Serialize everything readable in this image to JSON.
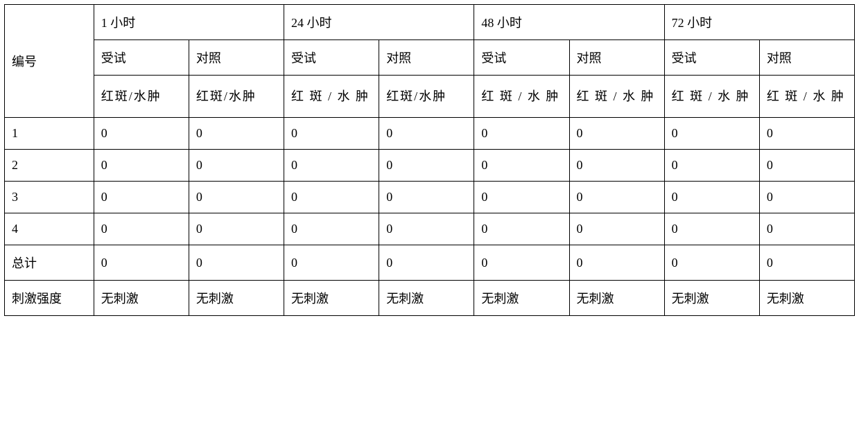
{
  "table": {
    "index_header": "编号",
    "time_groups": [
      {
        "label": "1 小时"
      },
      {
        "label": "24 小时"
      },
      {
        "label": "48 小时"
      },
      {
        "label": "72 小时"
      }
    ],
    "subgroup_labels": [
      "受试",
      "对照"
    ],
    "metric_label": "红斑/水肿",
    "metric_label_spaced": "红 斑 / 水 肿",
    "rows": [
      {
        "id": "1",
        "values": [
          "0",
          "0",
          "0",
          "0",
          "0",
          "0",
          "0",
          "0"
        ]
      },
      {
        "id": "2",
        "values": [
          "0",
          "0",
          "0",
          "0",
          "0",
          "0",
          "0",
          "0"
        ]
      },
      {
        "id": "3",
        "values": [
          "0",
          "0",
          "0",
          "0",
          "0",
          "0",
          "0",
          "0"
        ]
      },
      {
        "id": "4",
        "values": [
          "0",
          "0",
          "0",
          "0",
          "0",
          "0",
          "0",
          "0"
        ]
      }
    ],
    "total_label": "总计",
    "total_values": [
      "0",
      "0",
      "0",
      "0",
      "0",
      "0",
      "0",
      "0"
    ],
    "intensity_label": "刺激强度",
    "intensity_values": [
      "无刺激",
      "无刺激",
      "无刺激",
      "无刺激",
      "无刺激",
      "无刺激",
      "无刺激",
      "无刺激"
    ]
  }
}
